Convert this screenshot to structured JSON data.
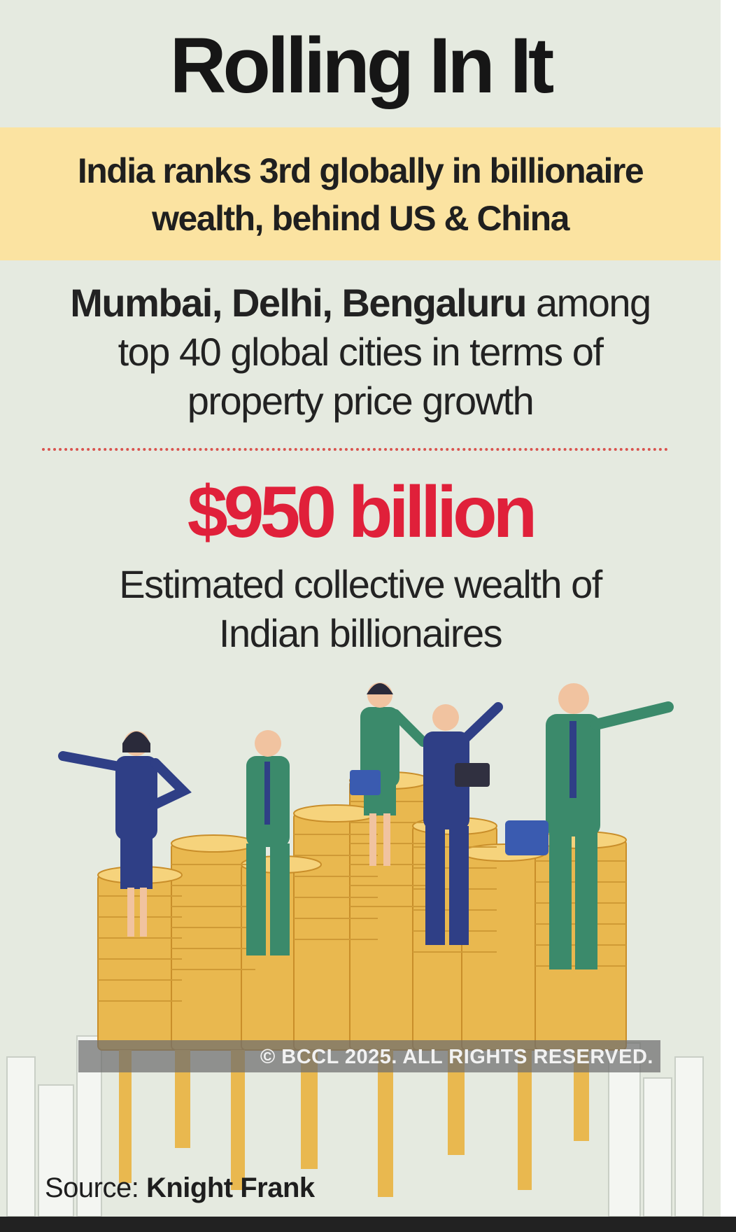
{
  "title": "Rolling In It",
  "headline": {
    "line1": "India ranks 3rd globally in billionaire",
    "line2": "wealth, behind US & China"
  },
  "cities": {
    "bold": "Mumbai, Delhi, Bengaluru",
    "line1_rest": " among",
    "line2": "top 40 global cities in terms of",
    "line3": "property price growth"
  },
  "stat": {
    "amount": "$950 billion",
    "line1": "Estimated collective wealth of",
    "line2": "Indian billionaires"
  },
  "copyright": "© BCCL 2025. ALL RIGHTS RESERVED.",
  "source": {
    "label": "Source:",
    "name": "Knight Frank"
  },
  "colors": {
    "background": "#e5eae0",
    "band": "#fbe3a1",
    "amount": "#e0203a",
    "coin": "#e8b64c",
    "suit_navy": "#2f3f86",
    "suit_green": "#3b8a6b"
  }
}
